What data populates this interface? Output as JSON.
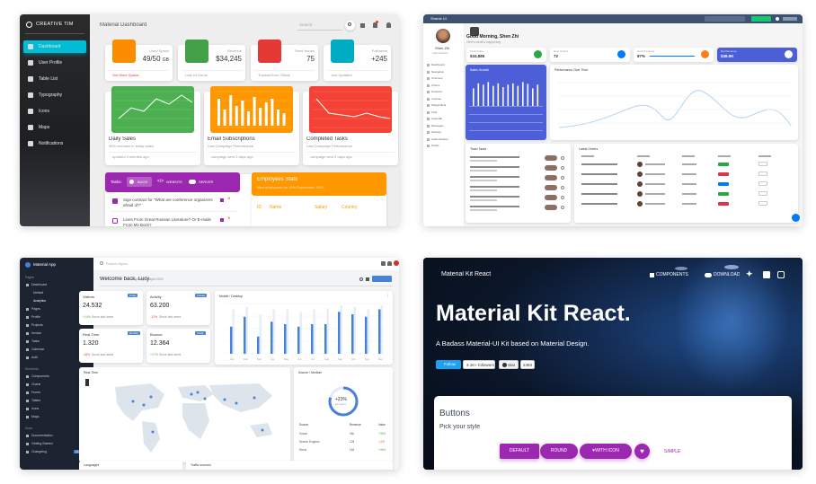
{
  "p1": {
    "brand": "CREATIVE TIM",
    "header_title": "Material Dashboard",
    "search_placeholder": "Search",
    "nav": [
      {
        "label": "Dashboard",
        "icon": "dashboard-icon"
      },
      {
        "label": "User Profile",
        "icon": "person-icon"
      },
      {
        "label": "Table List",
        "icon": "content-paste-icon"
      },
      {
        "label": "Typography",
        "icon": "library-books-icon"
      },
      {
        "label": "Icons",
        "icon": "bubble-chart-icon"
      },
      {
        "label": "Maps",
        "icon": "location-icon"
      },
      {
        "label": "Notifications",
        "icon": "notifications-icon"
      }
    ],
    "stats": [
      {
        "title": "Used Space",
        "value": "49/50",
        "unit": "GB",
        "footer": "Get More Space...",
        "color": "#fb8c00",
        "icon": "content-copy-icon"
      },
      {
        "title": "Revenue",
        "value": "$34,245",
        "unit": "",
        "footer": "Last 24 Hours",
        "color": "#43a047",
        "icon": "store-icon"
      },
      {
        "title": "Fixed Issues",
        "value": "75",
        "unit": "",
        "footer": "Tracked from Github",
        "color": "#e53935",
        "icon": "info-outline-icon"
      },
      {
        "title": "Followers",
        "value": "+245",
        "unit": "",
        "footer": "Just Updated",
        "color": "#00acc1",
        "icon": "accessibility-icon"
      }
    ],
    "charts": [
      {
        "title": "Daily Sales",
        "sub": "55% increase in today sales.",
        "footer": "updated 4 minutes ago",
        "color": "#4caf50"
      },
      {
        "title": "Email Subscriptions",
        "sub": "Last Campaign Performance",
        "footer": "campaign sent 2 days ago",
        "color": "#ff9800"
      },
      {
        "title": "Completed Tasks",
        "sub": "Last Campaign Performance",
        "footer": "campaign sent 2 days ago",
        "color": "#f44336"
      }
    ],
    "tasks_tabs": [
      "Tasks:",
      "BUGS",
      "WEBSITE",
      "SERVER"
    ],
    "tasks": [
      "Sign contract for \"What are conference organizers afraid of?\"",
      "Lines From Great Russian Literature? Or E-mails From My Boss?"
    ],
    "employees_title": "Employees Stats",
    "employees_sub": "New employees on 15th September, 2016",
    "employees_cols": [
      "ID",
      "Name",
      "Salary",
      "Country"
    ]
  },
  "p2": {
    "top_title": "Shards UI",
    "user_name": "Shen Zhi",
    "user_role": "Administrator",
    "greeting": "Good Morning, Shen Zhi",
    "greeting_sub": "Here's what's happening",
    "sidebar": [
      "Dashboard",
      "Navigation",
      "Overview",
      "Orders",
      "Products",
      "Invoices",
      "Widget Beta",
      "Chat",
      "Calendar",
      "Messages",
      "Settings",
      "Authentication",
      "Profile"
    ],
    "stats": [
      {
        "label": "Total Sales",
        "value": "$34,885",
        "dot": "#28a745"
      },
      {
        "label": "New Orders",
        "value": "72",
        "dot": "#007bff"
      },
      {
        "label": "Goal Progress",
        "value": "87%",
        "dot": "#fd7e14"
      },
      {
        "label": "Net Revenue",
        "value": "$38.9K",
        "dot": "#ffffff"
      }
    ],
    "perf_title": "Performance Over Time",
    "sales_title": "Sales Growth",
    "team_title": "Team Tasks",
    "latest_title": "Latest Orders",
    "bars": [
      0.7,
      0.9,
      0.85,
      0.95,
      0.8,
      0.9,
      0.75,
      0.85,
      0.9,
      0.8,
      0.95,
      0.88,
      0.7,
      0.85
    ]
  },
  "p3": {
    "brand": "Material App",
    "search_placeholder": "Search topics",
    "welcome": "Welcome back, Lucy",
    "date": "Monday, 29 April 2019",
    "cards": [
      {
        "title": "Visitors",
        "value": "24.532",
        "change": "+14%",
        "change_note": "Since last week",
        "badge": "Today",
        "change_color": "#4caf50"
      },
      {
        "title": "Activity",
        "value": "63.200",
        "change": "-12%",
        "change_note": "Since last week",
        "badge": "Annual",
        "change_color": "#f44336"
      },
      {
        "title": "Real-Time",
        "value": "1.320",
        "change": "-18%",
        "change_note": "Since last week",
        "badge": "Monthly",
        "change_color": "#f44336"
      },
      {
        "title": "Bounce",
        "value": "12.364",
        "change": "+27%",
        "change_note": "Since last week",
        "badge": "Yearly",
        "change_color": "#4caf50"
      }
    ],
    "chart_title": "Mobile / Desktop",
    "chart_months": [
      "Jan",
      "Feb",
      "Mar",
      "Apr",
      "May",
      "Jun",
      "Jul",
      "Aug",
      "Sep",
      "Oct",
      "Nov",
      "Dec"
    ],
    "chart_dark": [
      0.55,
      0.75,
      0.35,
      0.65,
      0.6,
      0.55,
      0.6,
      0.6,
      0.85,
      0.8,
      0.75,
      0.9
    ],
    "chart_light": [
      0.9,
      0.95,
      0.8,
      0.9,
      0.9,
      0.85,
      0.9,
      0.92,
      0.98,
      0.95,
      0.9,
      0.98
    ],
    "map_title": "Real-Time",
    "source_title": "Source / Medium",
    "donut_value": "+23%",
    "donut_note": "new visitors",
    "source_cols": [
      "Source",
      "Revenue",
      "Value"
    ],
    "source_rows": [
      {
        "source": "Social",
        "revenue": "260",
        "value": "+35%"
      },
      {
        "source": "Search Engines",
        "revenue": "125",
        "value": "-12%"
      },
      {
        "source": "Direct",
        "revenue": "164",
        "value": "+46%"
      }
    ],
    "bottom_titles": [
      "Languages",
      "Traffic sources"
    ],
    "sidebar_sections": [
      {
        "header": "Pages",
        "items": [
          "Dashboard",
          "Default",
          "Analytics",
          "Pages",
          "Profile",
          "Projects",
          "Invoice",
          "Tasks",
          "Calendar",
          "Auth"
        ]
      },
      {
        "header": "Elements",
        "items": [
          "Components",
          "Charts",
          "Forms",
          "Tables",
          "Icons",
          "Maps"
        ]
      },
      {
        "header": "Docs",
        "items": [
          "Documentation",
          "Getting Started",
          "Changelog"
        ]
      }
    ],
    "changelog_badge": "v1.0"
  },
  "p4": {
    "brand": "Material Kit React",
    "nav_components": "COMPONENTS",
    "nav_download": "DOWNLOAD",
    "hero_title": "Material Kit React.",
    "hero_sub": "A Badass Material-UI Kit based on Material Design.",
    "follow": "Follow",
    "followers": "3.1K+ followers",
    "star": "Star",
    "stars": "2483",
    "section_title": "Buttons",
    "section_sub": "Pick your style",
    "buttons": [
      "DEFAULT",
      "ROUND",
      "WITH ICON",
      "SIMPLE"
    ]
  }
}
